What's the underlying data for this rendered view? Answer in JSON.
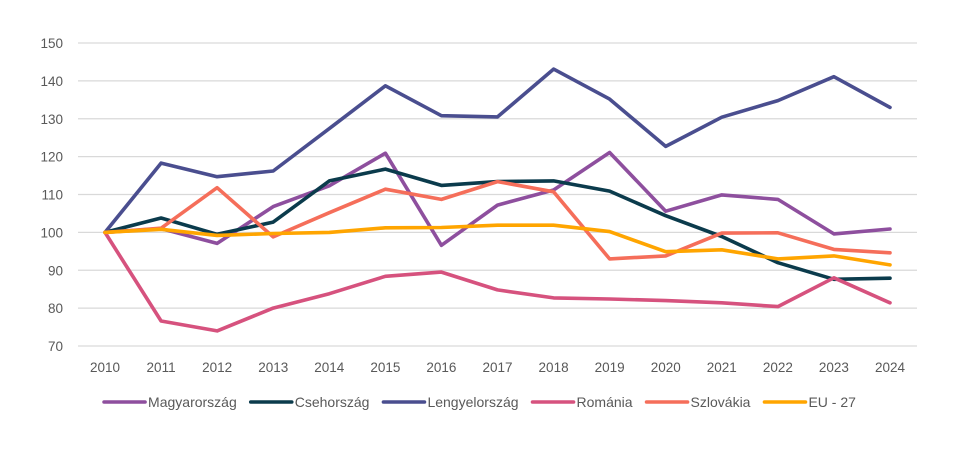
{
  "chart_data": {
    "type": "line",
    "title": "",
    "xlabel": "",
    "ylabel": "",
    "ylim": [
      70,
      150
    ],
    "yticks": [
      70,
      80,
      90,
      100,
      110,
      120,
      130,
      140,
      150
    ],
    "grid": true,
    "legend_position": "bottom",
    "categories": [
      "2010",
      "2011",
      "2012",
      "2013",
      "2014",
      "2015",
      "2016",
      "2017",
      "2018",
      "2019",
      "2020",
      "2021",
      "2022",
      "2023",
      "2024"
    ],
    "series": [
      {
        "name": "Magyarország",
        "color": "#8E4F9E",
        "values": [
          100,
          101.0,
          97.1,
          106.8,
          112.3,
          120.9,
          96.6,
          107.2,
          111.2,
          121.1,
          105.6,
          109.9,
          108.7,
          99.6,
          100.9
        ]
      },
      {
        "name": "Csehország",
        "color": "#0B3B4C",
        "values": [
          100,
          103.8,
          99.5,
          102.7,
          113.6,
          116.7,
          112.4,
          113.4,
          113.6,
          110.9,
          104.4,
          98.9,
          92.0,
          87.6,
          87.9
        ]
      },
      {
        "name": "Lengyelország",
        "color": "#4A4E8F",
        "values": [
          100,
          118.3,
          114.7,
          116.2,
          127.4,
          138.7,
          130.8,
          130.5,
          143.1,
          135.2,
          122.7,
          130.4,
          134.8,
          141.1,
          133.0
        ]
      },
      {
        "name": "Románia",
        "color": "#D6527E",
        "values": [
          100,
          76.6,
          74.0,
          80.0,
          83.8,
          88.4,
          89.5,
          84.8,
          82.7,
          82.4,
          82.0,
          81.4,
          80.4,
          88.0,
          81.4
        ]
      },
      {
        "name": "Szlovákia",
        "color": "#F56E5A",
        "values": [
          100,
          101.1,
          111.8,
          98.8,
          105.2,
          111.4,
          108.7,
          113.4,
          110.7,
          93.0,
          93.8,
          99.8,
          99.9,
          95.5,
          94.6
        ]
      },
      {
        "name": "EU - 27",
        "color": "#FFA500",
        "values": [
          100,
          100.8,
          99.2,
          99.7,
          100.0,
          101.2,
          101.3,
          101.9,
          101.9,
          100.2,
          94.9,
          95.4,
          93.0,
          93.8,
          91.4
        ]
      }
    ]
  }
}
